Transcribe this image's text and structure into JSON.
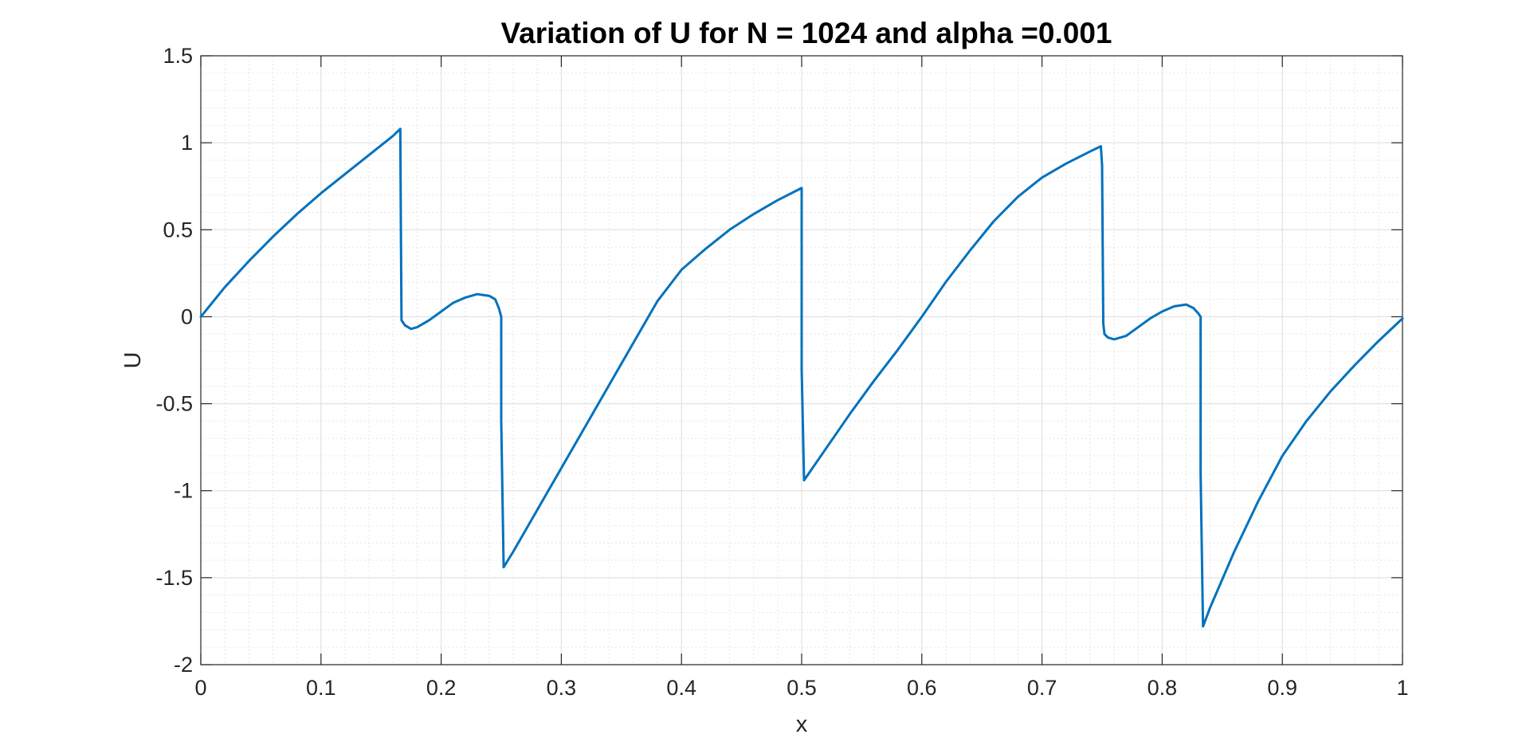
{
  "chart_data": {
    "type": "line",
    "title": "Variation of U for N = 1024 and alpha =0.001",
    "xlabel": "x",
    "ylabel": "U",
    "xlim": [
      0,
      1
    ],
    "ylim": [
      -2,
      1.5
    ],
    "xticks": [
      "0",
      "0.1",
      "0.2",
      "0.3",
      "0.4",
      "0.5",
      "0.6",
      "0.7",
      "0.8",
      "0.9",
      "1"
    ],
    "yticks": [
      "1.5",
      "1",
      "0.5",
      "0",
      "-0.5",
      "-1",
      "-1.5",
      "-2"
    ],
    "grid": true,
    "minor_grid": true,
    "box": true,
    "line_color": "#0072BD",
    "series": [
      {
        "x": [
          0,
          0.02,
          0.04,
          0.06,
          0.08,
          0.1,
          0.12,
          0.14,
          0.16,
          0.166,
          0.1665,
          0.167,
          0.17,
          0.175,
          0.18,
          0.19,
          0.2,
          0.21,
          0.22,
          0.23,
          0.24,
          0.245,
          0.248,
          0.25,
          0.25,
          0.252,
          0.26,
          0.28,
          0.3,
          0.32,
          0.34,
          0.36,
          0.38,
          0.4,
          0.42,
          0.44,
          0.46,
          0.48,
          0.5,
          0.5,
          0.502,
          0.52,
          0.54,
          0.56,
          0.58,
          0.6,
          0.62,
          0.64,
          0.66,
          0.68,
          0.7,
          0.72,
          0.74,
          0.749,
          0.75,
          0.751,
          0.752,
          0.755,
          0.76,
          0.77,
          0.78,
          0.79,
          0.8,
          0.81,
          0.82,
          0.826,
          0.83,
          0.832,
          0.832,
          0.834,
          0.84,
          0.86,
          0.88,
          0.9,
          0.92,
          0.94,
          0.96,
          0.98,
          1.0
        ],
        "values": [
          0,
          0.17,
          0.32,
          0.46,
          0.59,
          0.71,
          0.82,
          0.93,
          1.04,
          1.08,
          0.5,
          -0.02,
          -0.05,
          -0.07,
          -0.06,
          -0.02,
          0.03,
          0.08,
          0.11,
          0.13,
          0.12,
          0.1,
          0.05,
          0.0,
          -0.6,
          -1.44,
          -1.35,
          -1.11,
          -0.87,
          -0.63,
          -0.39,
          -0.15,
          0.09,
          0.27,
          0.39,
          0.5,
          0.59,
          0.67,
          0.74,
          -0.3,
          -0.94,
          -0.76,
          -0.56,
          -0.37,
          -0.19,
          0.0,
          0.2,
          0.38,
          0.55,
          0.69,
          0.8,
          0.88,
          0.95,
          0.98,
          0.87,
          -0.04,
          -0.1,
          -0.12,
          -0.13,
          -0.11,
          -0.06,
          -0.01,
          0.03,
          0.06,
          0.07,
          0.05,
          0.02,
          0.0,
          -0.9,
          -1.78,
          -1.67,
          -1.35,
          -1.06,
          -0.8,
          -0.6,
          -0.43,
          -0.28,
          -0.14,
          -0.01
        ]
      }
    ]
  }
}
